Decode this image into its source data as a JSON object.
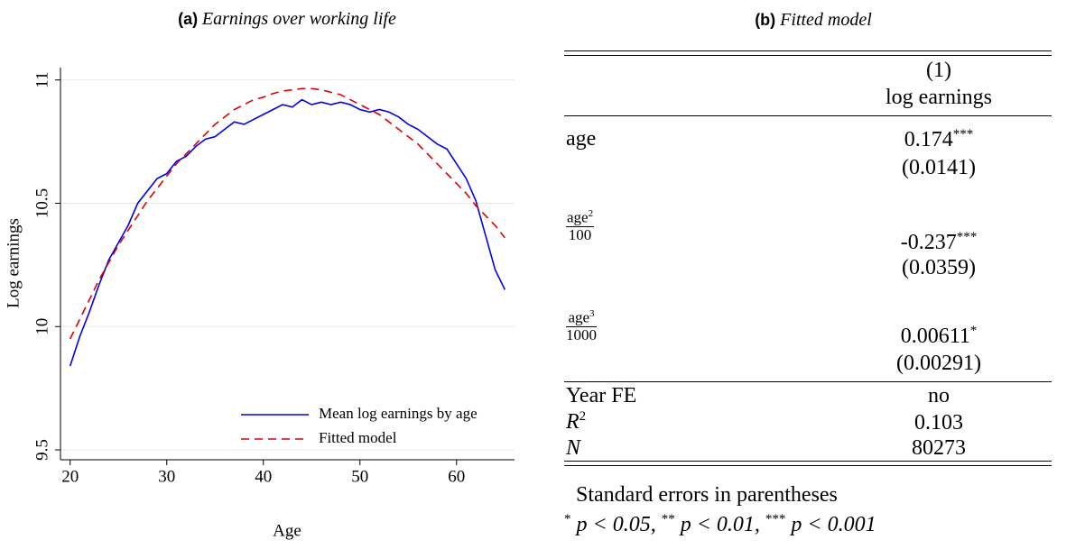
{
  "chart_data": {
    "type": "line",
    "panel": "(a)",
    "title": "Earnings over working life",
    "x_label": "Age",
    "y_label": "Log earnings",
    "x": [
      20,
      21,
      22,
      23,
      24,
      25,
      26,
      27,
      28,
      29,
      30,
      31,
      32,
      33,
      34,
      35,
      36,
      37,
      38,
      39,
      40,
      41,
      42,
      43,
      44,
      45,
      46,
      47,
      48,
      49,
      50,
      51,
      52,
      53,
      54,
      55,
      56,
      57,
      58,
      59,
      60,
      61,
      62,
      63,
      64,
      65
    ],
    "series": [
      {
        "name": "Mean log earnings by age",
        "color": "#0000ee",
        "dash": "solid",
        "values": [
          9.84,
          9.96,
          10.06,
          10.17,
          10.27,
          10.34,
          10.41,
          10.5,
          10.55,
          10.6,
          10.62,
          10.67,
          10.69,
          10.73,
          10.76,
          10.77,
          10.8,
          10.83,
          10.82,
          10.84,
          10.86,
          10.88,
          10.9,
          10.89,
          10.92,
          10.9,
          10.91,
          10.9,
          10.91,
          10.9,
          10.88,
          10.87,
          10.88,
          10.87,
          10.85,
          10.82,
          10.8,
          10.77,
          10.74,
          10.72,
          10.66,
          10.6,
          10.51,
          10.37,
          10.23,
          10.15
        ]
      },
      {
        "name": "Fitted model",
        "color": "#dd0000",
        "dash": "dashed",
        "values": [
          9.95,
          10.03,
          10.11,
          10.19,
          10.26,
          10.33,
          10.39,
          10.45,
          10.51,
          10.56,
          10.61,
          10.66,
          10.7,
          10.74,
          10.78,
          10.82,
          10.85,
          10.88,
          10.9,
          10.92,
          10.93,
          10.945,
          10.955,
          10.96,
          10.965,
          10.965,
          10.96,
          10.95,
          10.94,
          10.92,
          10.9,
          10.88,
          10.86,
          10.83,
          10.8,
          10.77,
          10.74,
          10.7,
          10.66,
          10.62,
          10.58,
          10.54,
          10.49,
          10.45,
          10.41,
          10.36
        ]
      }
    ],
    "xlim": [
      19,
      66
    ],
    "ylim": [
      9.46,
      11.05
    ],
    "xticks": [
      20,
      30,
      40,
      50,
      60
    ],
    "yticks": [
      9.5,
      10,
      10.5,
      11
    ],
    "grid": true,
    "legend": "bottom-right"
  },
  "table": {
    "panel": "(b)",
    "title": "Fitted model",
    "column_number": "(1)",
    "column_label": "log earnings",
    "coefficients": [
      {
        "label": {
          "text": "age"
        },
        "coef": "0.174",
        "stars": "***",
        "se": "(0.0141)"
      },
      {
        "label": {
          "numerator": "age",
          "sup": "2",
          "denominator": "100"
        },
        "coef": "-0.237",
        "stars": "***",
        "se": "(0.0359)"
      },
      {
        "label": {
          "numerator": "age",
          "sup": "3",
          "denominator": "1000"
        },
        "coef": "0.00611",
        "stars": "*",
        "se": "(0.00291)"
      }
    ],
    "stats": [
      {
        "label": "Year FE",
        "value": "no"
      },
      {
        "label": "R",
        "sup": "2",
        "value": "0.103"
      },
      {
        "label": "N",
        "value": "80273"
      }
    ],
    "note": "Standard errors in parentheses",
    "significance": [
      {
        "stars": "*",
        "text": "p < 0.05,"
      },
      {
        "stars": "**",
        "text": "p < 0.01,"
      },
      {
        "stars": "***",
        "text": "p < 0.001"
      }
    ]
  }
}
